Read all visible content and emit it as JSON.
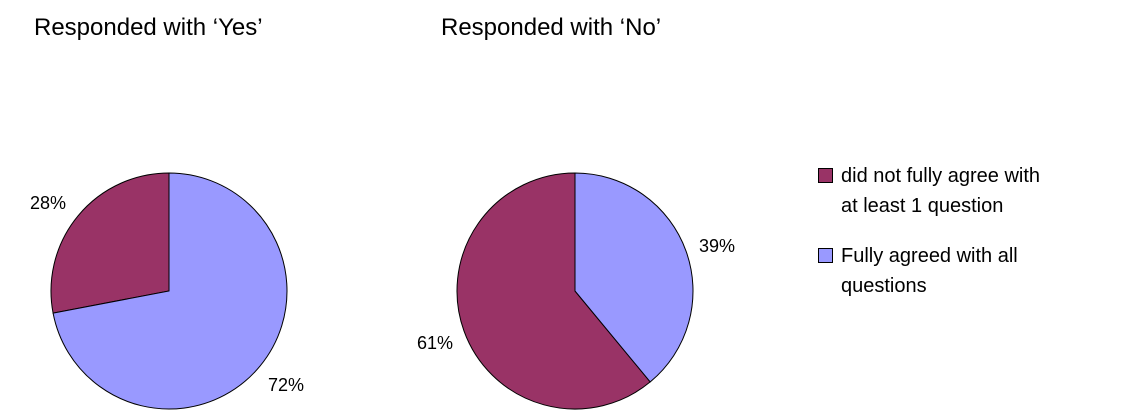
{
  "chart_data": [
    {
      "type": "pie",
      "title": "Responded with ‘Yes’",
      "slices": [
        {
          "label": "did not fully agree with at least 1 question",
          "value": 28,
          "display": "28%",
          "color": "#993366"
        },
        {
          "label": "Fully agreed with all questions",
          "value": 72,
          "display": "72%",
          "color": "#9999FF"
        }
      ]
    },
    {
      "type": "pie",
      "title": "Responded with ‘No’",
      "slices": [
        {
          "label": "did not fully agree with at least 1 question",
          "value": 61,
          "display": "61%",
          "color": "#993366"
        },
        {
          "label": "Fully agreed with all questions",
          "value": 39,
          "display": "39%",
          "color": "#9999FF"
        }
      ]
    }
  ],
  "legend": {
    "items": [
      {
        "line1": "did not fully agree with",
        "line2": "at least 1 question",
        "color": "#993366"
      },
      {
        "line1": "Fully agreed with all",
        "line2": "questions",
        "color": "#9999FF"
      }
    ]
  }
}
